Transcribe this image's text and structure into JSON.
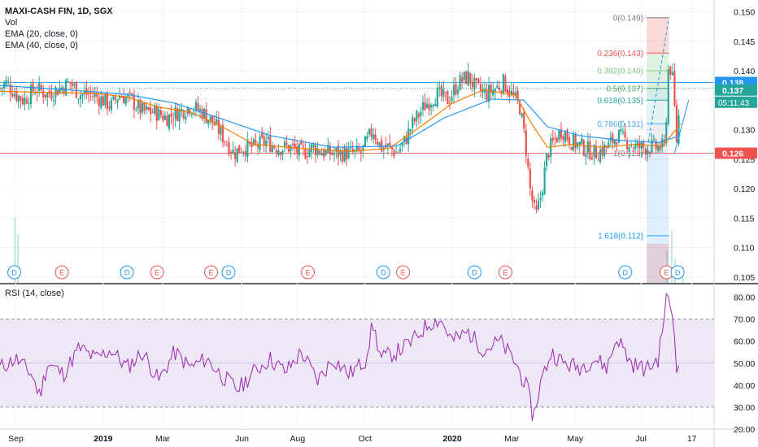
{
  "legend": {
    "title": "MAXI-CASH FIN, 1D, SGX",
    "vol": "Vol",
    "ema20": "EMA (20, close, 0)",
    "ema40": "EMA (40, close, 0)"
  },
  "rsi_legend": "RSI (14, close)",
  "colors": {
    "up": "#26a69a",
    "down": "#ef5350",
    "ema20": "#f57c00",
    "ema40": "#2196f3",
    "rsi": "#9c27b0",
    "rsi_band": "#ede7f6",
    "support": "#e57373",
    "resistance": "#42a5f5",
    "price_box": "#2196f3",
    "support_box": "#ef5350",
    "current_box": "#26a69a"
  },
  "chart_data": [
    {
      "type": "candlestick",
      "x_ticks": [
        "Sep",
        "2019",
        "Mar",
        "Jun",
        "Aug",
        "Oct",
        "2020",
        "Mar",
        "May",
        "Jul",
        "17"
      ],
      "y_ticks": [
        "0.150",
        "0.145",
        "0.140",
        "0.135",
        "0.130",
        "0.125",
        "0.120",
        "0.115",
        "0.110",
        "0.105"
      ],
      "ylim": [
        0.104,
        0.152
      ],
      "price_labels": [
        {
          "value": 0.138,
          "label": "0.138",
          "kind": "resistance"
        },
        {
          "value": 0.137,
          "label": "0.137",
          "kind": "current"
        },
        {
          "value": 0.126,
          "label": "0.126",
          "kind": "support"
        }
      ],
      "countdown": "05:11:43",
      "horizontal_lines": [
        {
          "value": 0.138,
          "kind": "resistance"
        },
        {
          "value": 0.126,
          "kind": "support"
        }
      ],
      "fibonacci": [
        {
          "ratio": "0",
          "price": 0.149,
          "label": "0(0.149)"
        },
        {
          "ratio": "0.236",
          "price": 0.143,
          "label": "0.236(0.143)"
        },
        {
          "ratio": "0.382",
          "price": 0.14,
          "label": "0.382(0.140)"
        },
        {
          "ratio": "0.5",
          "price": 0.137,
          "label": "0.5(0.137)"
        },
        {
          "ratio": "0.618",
          "price": 0.135,
          "label": "0.618(0.135)"
        },
        {
          "ratio": "0.786",
          "price": 0.131,
          "label": "0.786(0.131)"
        },
        {
          "ratio": "1",
          "price": 0.126,
          "label": "1(0.126)"
        },
        {
          "ratio": "1.618",
          "price": 0.112,
          "label": "1.618(0.112)"
        }
      ],
      "price_series": [
        {
          "t": 0,
          "close": 0.137
        },
        {
          "t": 8,
          "close": 0.138
        },
        {
          "t": 20,
          "close": 0.136
        },
        {
          "t": 30,
          "close": 0.135
        },
        {
          "t": 45,
          "close": 0.137
        },
        {
          "t": 60,
          "close": 0.136
        },
        {
          "t": 75,
          "close": 0.137
        },
        {
          "t": 88,
          "close": 0.138
        },
        {
          "t": 100,
          "close": 0.136
        },
        {
          "t": 115,
          "close": 0.136
        },
        {
          "t": 130,
          "close": 0.135
        },
        {
          "t": 140,
          "close": 0.134
        },
        {
          "t": 150,
          "close": 0.136
        },
        {
          "t": 165,
          "close": 0.135
        },
        {
          "t": 180,
          "close": 0.133
        },
        {
          "t": 195,
          "close": 0.133
        },
        {
          "t": 210,
          "close": 0.132
        },
        {
          "t": 225,
          "close": 0.133
        },
        {
          "t": 240,
          "close": 0.134
        },
        {
          "t": 255,
          "close": 0.133
        },
        {
          "t": 270,
          "close": 0.131
        },
        {
          "t": 285,
          "close": 0.128
        },
        {
          "t": 295,
          "close": 0.126
        },
        {
          "t": 305,
          "close": 0.127
        },
        {
          "t": 320,
          "close": 0.127
        },
        {
          "t": 335,
          "close": 0.128
        },
        {
          "t": 350,
          "close": 0.127
        },
        {
          "t": 365,
          "close": 0.127
        },
        {
          "t": 380,
          "close": 0.126
        },
        {
          "t": 395,
          "close": 0.127
        },
        {
          "t": 410,
          "close": 0.126
        },
        {
          "t": 425,
          "close": 0.126
        },
        {
          "t": 440,
          "close": 0.126
        },
        {
          "t": 455,
          "close": 0.126
        },
        {
          "t": 470,
          "close": 0.13
        },
        {
          "t": 480,
          "close": 0.127
        },
        {
          "t": 490,
          "close": 0.127
        },
        {
          "t": 500,
          "close": 0.126
        },
        {
          "t": 510,
          "close": 0.128
        },
        {
          "t": 520,
          "close": 0.131
        },
        {
          "t": 535,
          "close": 0.134
        },
        {
          "t": 550,
          "close": 0.136
        },
        {
          "t": 565,
          "close": 0.135
        },
        {
          "t": 578,
          "close": 0.138
        },
        {
          "t": 590,
          "close": 0.139
        },
        {
          "t": 600,
          "close": 0.137
        },
        {
          "t": 612,
          "close": 0.136
        },
        {
          "t": 625,
          "close": 0.137
        },
        {
          "t": 635,
          "close": 0.138
        },
        {
          "t": 645,
          "close": 0.136
        },
        {
          "t": 655,
          "close": 0.134
        },
        {
          "t": 662,
          "close": 0.128
        },
        {
          "t": 668,
          "close": 0.12
        },
        {
          "t": 675,
          "close": 0.115
        },
        {
          "t": 682,
          "close": 0.119
        },
        {
          "t": 690,
          "close": 0.126
        },
        {
          "t": 698,
          "close": 0.128
        },
        {
          "t": 708,
          "close": 0.13
        },
        {
          "t": 720,
          "close": 0.128
        },
        {
          "t": 735,
          "close": 0.127
        },
        {
          "t": 750,
          "close": 0.126
        },
        {
          "t": 765,
          "close": 0.127
        },
        {
          "t": 778,
          "close": 0.129
        },
        {
          "t": 790,
          "close": 0.128
        },
        {
          "t": 802,
          "close": 0.127
        },
        {
          "t": 815,
          "close": 0.127
        },
        {
          "t": 828,
          "close": 0.127
        },
        {
          "t": 838,
          "close": 0.127
        },
        {
          "t": 843,
          "close": 0.142
        },
        {
          "t": 848,
          "close": 0.138
        },
        {
          "t": 853,
          "close": 0.128
        },
        {
          "t": 858,
          "close": 0.137
        }
      ],
      "ema20": [
        {
          "t": 0,
          "v": 0.1365
        },
        {
          "t": 60,
          "v": 0.1363
        },
        {
          "t": 120,
          "v": 0.1362
        },
        {
          "t": 160,
          "v": 0.1355
        },
        {
          "t": 200,
          "v": 0.1338
        },
        {
          "t": 240,
          "v": 0.133
        },
        {
          "t": 280,
          "v": 0.1305
        },
        {
          "t": 320,
          "v": 0.1275
        },
        {
          "t": 380,
          "v": 0.1268
        },
        {
          "t": 440,
          "v": 0.1263
        },
        {
          "t": 490,
          "v": 0.1268
        },
        {
          "t": 530,
          "v": 0.1305
        },
        {
          "t": 570,
          "v": 0.1345
        },
        {
          "t": 610,
          "v": 0.1368
        },
        {
          "t": 650,
          "v": 0.1358
        },
        {
          "t": 670,
          "v": 0.131
        },
        {
          "t": 690,
          "v": 0.127
        },
        {
          "t": 720,
          "v": 0.1275
        },
        {
          "t": 760,
          "v": 0.127
        },
        {
          "t": 800,
          "v": 0.1275
        },
        {
          "t": 835,
          "v": 0.1272
        },
        {
          "t": 858,
          "v": 0.131
        }
      ],
      "ema40": [
        {
          "t": 0,
          "v": 0.1375
        },
        {
          "t": 80,
          "v": 0.1368
        },
        {
          "t": 160,
          "v": 0.136
        },
        {
          "t": 220,
          "v": 0.1345
        },
        {
          "t": 280,
          "v": 0.1318
        },
        {
          "t": 340,
          "v": 0.129
        },
        {
          "t": 420,
          "v": 0.127
        },
        {
          "t": 500,
          "v": 0.1272
        },
        {
          "t": 560,
          "v": 0.132
        },
        {
          "t": 620,
          "v": 0.1352
        },
        {
          "t": 660,
          "v": 0.135
        },
        {
          "t": 690,
          "v": 0.1305
        },
        {
          "t": 730,
          "v": 0.129
        },
        {
          "t": 780,
          "v": 0.1282
        },
        {
          "t": 830,
          "v": 0.1278
        },
        {
          "t": 858,
          "v": 0.129
        }
      ],
      "events": [
        {
          "t": 18,
          "kind": "D"
        },
        {
          "t": 78,
          "kind": "E"
        },
        {
          "t": 160,
          "kind": "D"
        },
        {
          "t": 198,
          "kind": "E"
        },
        {
          "t": 266,
          "kind": "E"
        },
        {
          "t": 288,
          "kind": "D"
        },
        {
          "t": 388,
          "kind": "E"
        },
        {
          "t": 483,
          "kind": "D"
        },
        {
          "t": 508,
          "kind": "E"
        },
        {
          "t": 598,
          "kind": "D"
        },
        {
          "t": 637,
          "kind": "E"
        },
        {
          "t": 788,
          "kind": "D"
        },
        {
          "t": 840,
          "kind": "E"
        },
        {
          "t": 854,
          "kind": "D"
        }
      ]
    },
    {
      "type": "line",
      "name": "RSI (14, close)",
      "y_ticks": [
        "80.00",
        "70.00",
        "60.00",
        "50.00",
        "40.00",
        "30.00",
        "20.00"
      ],
      "ylim": [
        20,
        85
      ],
      "band": [
        30,
        70
      ],
      "values": [
        {
          "t": 0,
          "v": 48
        },
        {
          "t": 20,
          "v": 52
        },
        {
          "t": 40,
          "v": 45
        },
        {
          "t": 50,
          "v": 35
        },
        {
          "t": 60,
          "v": 50
        },
        {
          "t": 80,
          "v": 45
        },
        {
          "t": 100,
          "v": 57
        },
        {
          "t": 120,
          "v": 52
        },
        {
          "t": 140,
          "v": 56
        },
        {
          "t": 160,
          "v": 48
        },
        {
          "t": 180,
          "v": 55
        },
        {
          "t": 200,
          "v": 42
        },
        {
          "t": 220,
          "v": 55
        },
        {
          "t": 240,
          "v": 48
        },
        {
          "t": 260,
          "v": 52
        },
        {
          "t": 280,
          "v": 44
        },
        {
          "t": 300,
          "v": 38
        },
        {
          "t": 320,
          "v": 46
        },
        {
          "t": 340,
          "v": 52
        },
        {
          "t": 360,
          "v": 46
        },
        {
          "t": 380,
          "v": 55
        },
        {
          "t": 400,
          "v": 42
        },
        {
          "t": 420,
          "v": 52
        },
        {
          "t": 440,
          "v": 45
        },
        {
          "t": 460,
          "v": 51
        },
        {
          "t": 470,
          "v": 68
        },
        {
          "t": 480,
          "v": 52
        },
        {
          "t": 500,
          "v": 55
        },
        {
          "t": 520,
          "v": 60
        },
        {
          "t": 540,
          "v": 68
        },
        {
          "t": 555,
          "v": 70
        },
        {
          "t": 570,
          "v": 60
        },
        {
          "t": 590,
          "v": 64
        },
        {
          "t": 610,
          "v": 56
        },
        {
          "t": 630,
          "v": 60
        },
        {
          "t": 650,
          "v": 50
        },
        {
          "t": 665,
          "v": 38
        },
        {
          "t": 672,
          "v": 25
        },
        {
          "t": 682,
          "v": 42
        },
        {
          "t": 695,
          "v": 55
        },
        {
          "t": 710,
          "v": 50
        },
        {
          "t": 730,
          "v": 48
        },
        {
          "t": 750,
          "v": 52
        },
        {
          "t": 765,
          "v": 48
        },
        {
          "t": 778,
          "v": 62
        },
        {
          "t": 795,
          "v": 50
        },
        {
          "t": 815,
          "v": 47
        },
        {
          "t": 830,
          "v": 52
        },
        {
          "t": 840,
          "v": 80
        },
        {
          "t": 848,
          "v": 72
        },
        {
          "t": 853,
          "v": 48
        },
        {
          "t": 858,
          "v": 58
        }
      ]
    }
  ]
}
